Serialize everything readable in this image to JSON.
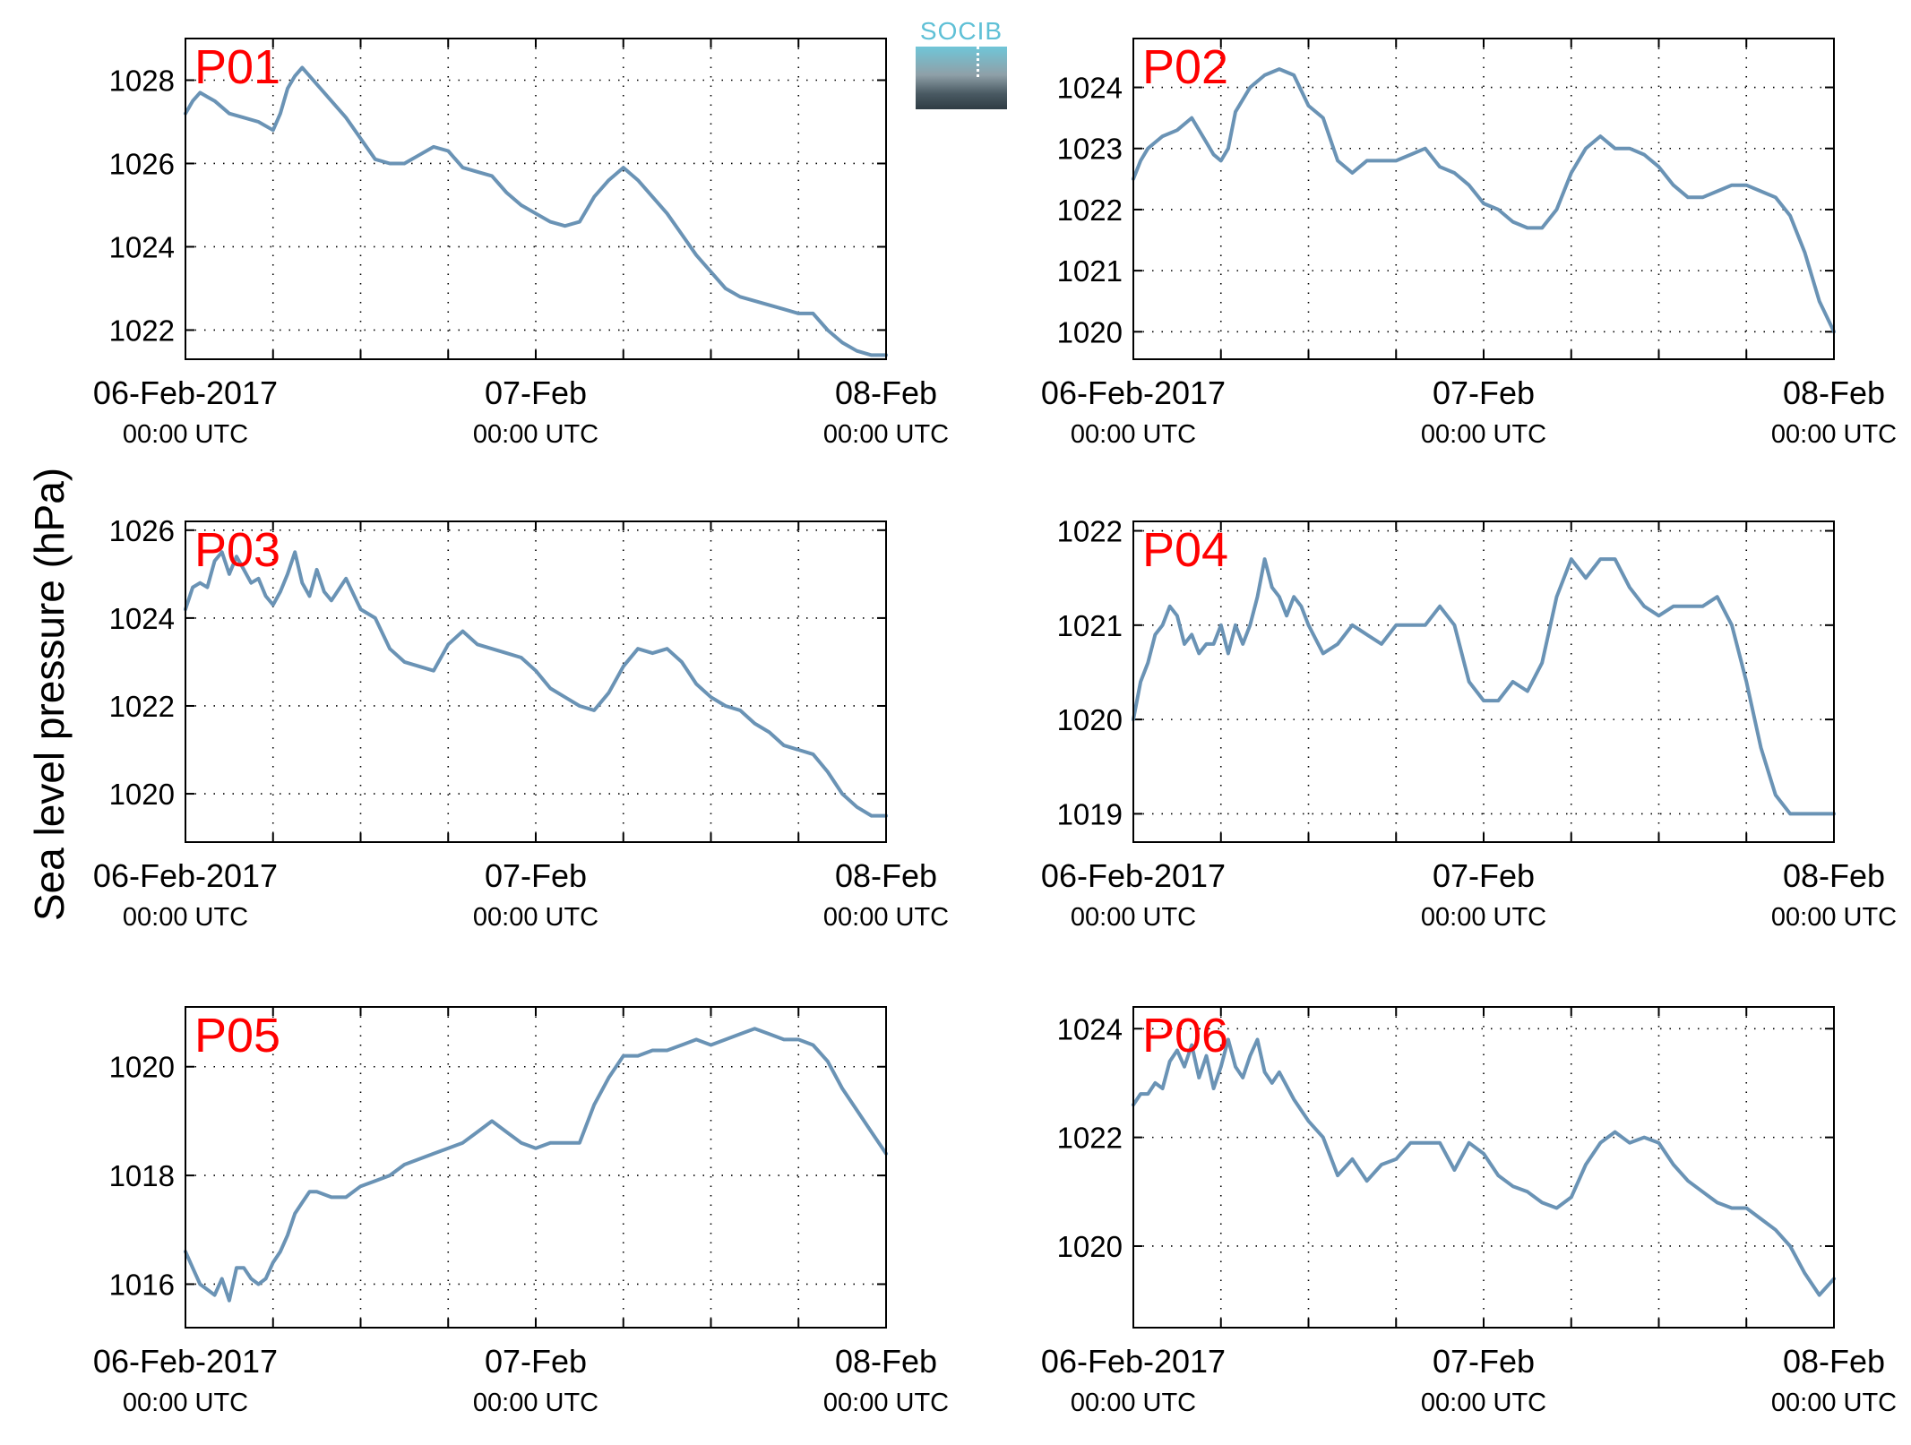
{
  "figure": {
    "ylabel": "Sea level pressure (hPa)",
    "logo_text": "SOCIB",
    "line_color": "#6a93b5",
    "label_color": "#ff0000"
  },
  "chart_data": [
    {
      "type": "line",
      "name": "P01",
      "xlim": [
        0,
        48
      ],
      "ylim": [
        1021.3,
        1029.0
      ],
      "yticks": [
        1022,
        1024,
        1026,
        1028
      ],
      "xticks": [
        "06-Feb-2017",
        "07-Feb",
        "08-Feb"
      ],
      "xtick_sub": [
        "00:00 UTC",
        "00:00 UTC",
        "00:00 UTC"
      ],
      "grid": true,
      "x": [
        0,
        0.5,
        1,
        1.5,
        2,
        3,
        4,
        5,
        6,
        6.5,
        7,
        7.5,
        8,
        8.5,
        9,
        10,
        11,
        12,
        13,
        14,
        15,
        16,
        17,
        18,
        19,
        20,
        21,
        22,
        23,
        24,
        25,
        26,
        27,
        28,
        29,
        30,
        31,
        32,
        33,
        34,
        35,
        36,
        37,
        38,
        39,
        40,
        41,
        42,
        43,
        44,
        45,
        46,
        47,
        48
      ],
      "y": [
        1027.2,
        1027.5,
        1027.7,
        1027.6,
        1027.5,
        1027.2,
        1027.1,
        1027.0,
        1026.8,
        1027.2,
        1027.8,
        1028.1,
        1028.3,
        1028.1,
        1027.9,
        1027.5,
        1027.1,
        1026.6,
        1026.1,
        1026.0,
        1026.0,
        1026.2,
        1026.4,
        1026.3,
        1025.9,
        1025.8,
        1025.7,
        1025.3,
        1025.0,
        1024.8,
        1024.6,
        1024.5,
        1024.6,
        1025.2,
        1025.6,
        1025.9,
        1025.6,
        1025.2,
        1024.8,
        1024.3,
        1023.8,
        1023.4,
        1023.0,
        1022.8,
        1022.7,
        1022.6,
        1022.5,
        1022.4,
        1022.4,
        1022.0,
        1021.7,
        1021.5,
        1021.4,
        1021.4
      ]
    },
    {
      "type": "line",
      "name": "P02",
      "xlim": [
        0,
        48
      ],
      "ylim": [
        1019.55,
        1024.8
      ],
      "yticks": [
        1020,
        1021,
        1022,
        1023,
        1024
      ],
      "xticks": [
        "06-Feb-2017",
        "07-Feb",
        "08-Feb"
      ],
      "xtick_sub": [
        "00:00 UTC",
        "00:00 UTC",
        "00:00 UTC"
      ],
      "grid": true,
      "x": [
        0,
        0.5,
        1,
        1.5,
        2,
        3,
        4,
        5,
        5.5,
        6,
        6.5,
        7,
        8,
        9,
        10,
        11,
        12,
        13,
        14,
        15,
        16,
        17,
        18,
        19,
        20,
        21,
        22,
        23,
        24,
        25,
        26,
        27,
        28,
        29,
        30,
        31,
        32,
        33,
        34,
        35,
        36,
        37,
        38,
        39,
        40,
        41,
        42,
        43,
        44,
        45,
        46,
        47,
        48
      ],
      "y": [
        1022.5,
        1022.8,
        1023.0,
        1023.1,
        1023.2,
        1023.3,
        1023.5,
        1023.1,
        1022.9,
        1022.8,
        1023.0,
        1023.6,
        1024.0,
        1024.2,
        1024.3,
        1024.2,
        1023.7,
        1023.5,
        1022.8,
        1022.6,
        1022.8,
        1022.8,
        1022.8,
        1022.9,
        1023.0,
        1022.7,
        1022.6,
        1022.4,
        1022.1,
        1022.0,
        1021.8,
        1021.7,
        1021.7,
        1022.0,
        1022.6,
        1023.0,
        1023.2,
        1023.0,
        1023.0,
        1022.9,
        1022.7,
        1022.4,
        1022.2,
        1022.2,
        1022.3,
        1022.4,
        1022.4,
        1022.3,
        1022.2,
        1021.9,
        1021.3,
        1020.5,
        1020.0
      ]
    },
    {
      "type": "line",
      "name": "P03",
      "xlim": [
        0,
        48
      ],
      "ylim": [
        1018.9,
        1026.2
      ],
      "yticks": [
        1020,
        1022,
        1024,
        1026
      ],
      "xticks": [
        "06-Feb-2017",
        "07-Feb",
        "08-Feb"
      ],
      "xtick_sub": [
        "00:00 UTC",
        "00:00 UTC",
        "00:00 UTC"
      ],
      "grid": true,
      "x": [
        0,
        0.5,
        1,
        1.5,
        2,
        2.5,
        3,
        3.5,
        4,
        4.5,
        5,
        5.5,
        6,
        6.5,
        7,
        7.5,
        8,
        8.5,
        9,
        9.5,
        10,
        11,
        12,
        13,
        14,
        15,
        16,
        17,
        18,
        19,
        20,
        21,
        22,
        23,
        24,
        25,
        26,
        27,
        28,
        29,
        30,
        31,
        32,
        33,
        34,
        35,
        36,
        37,
        38,
        39,
        40,
        41,
        42,
        43,
        44,
        45,
        46,
        47,
        48
      ],
      "y": [
        1024.2,
        1024.7,
        1024.8,
        1024.7,
        1025.3,
        1025.5,
        1025.0,
        1025.4,
        1025.1,
        1024.8,
        1024.9,
        1024.5,
        1024.3,
        1024.6,
        1025.0,
        1025.5,
        1024.8,
        1024.5,
        1025.1,
        1024.6,
        1024.4,
        1024.9,
        1024.2,
        1024.0,
        1023.3,
        1023.0,
        1022.9,
        1022.8,
        1023.4,
        1023.7,
        1023.4,
        1023.3,
        1023.2,
        1023.1,
        1022.8,
        1022.4,
        1022.2,
        1022.0,
        1021.9,
        1022.3,
        1022.9,
        1023.3,
        1023.2,
        1023.3,
        1023.0,
        1022.5,
        1022.2,
        1022.0,
        1021.9,
        1021.6,
        1021.4,
        1021.1,
        1021.0,
        1020.9,
        1020.5,
        1020.0,
        1019.7,
        1019.5,
        1019.5
      ]
    },
    {
      "type": "line",
      "name": "P04",
      "xlim": [
        0,
        48
      ],
      "ylim": [
        1018.7,
        1022.1
      ],
      "yticks": [
        1019,
        1020,
        1021,
        1022
      ],
      "xticks": [
        "06-Feb-2017",
        "07-Feb",
        "08-Feb"
      ],
      "xtick_sub": [
        "00:00 UTC",
        "00:00 UTC",
        "00:00 UTC"
      ],
      "grid": true,
      "x": [
        0,
        0.5,
        1,
        1.5,
        2,
        2.5,
        3,
        3.5,
        4,
        4.5,
        5,
        5.5,
        6,
        6.5,
        7,
        7.5,
        8,
        8.5,
        9,
        9.5,
        10,
        10.5,
        11,
        11.5,
        12,
        13,
        14,
        15,
        16,
        17,
        18,
        19,
        20,
        21,
        22,
        23,
        24,
        25,
        26,
        27,
        28,
        29,
        30,
        31,
        32,
        33,
        34,
        35,
        36,
        37,
        38,
        39,
        40,
        41,
        42,
        43,
        44,
        45,
        46,
        47,
        48
      ],
      "y": [
        1020.0,
        1020.4,
        1020.6,
        1020.9,
        1021.0,
        1021.2,
        1021.1,
        1020.8,
        1020.9,
        1020.7,
        1020.8,
        1020.8,
        1021.0,
        1020.7,
        1021.0,
        1020.8,
        1021.0,
        1021.3,
        1021.7,
        1021.4,
        1021.3,
        1021.1,
        1021.3,
        1021.2,
        1021.0,
        1020.7,
        1020.8,
        1021.0,
        1020.9,
        1020.8,
        1021.0,
        1021.0,
        1021.0,
        1021.2,
        1021.0,
        1020.4,
        1020.2,
        1020.2,
        1020.4,
        1020.3,
        1020.6,
        1021.3,
        1021.7,
        1021.5,
        1021.7,
        1021.7,
        1021.4,
        1021.2,
        1021.1,
        1021.2,
        1021.2,
        1021.2,
        1021.3,
        1021.0,
        1020.4,
        1019.7,
        1019.2,
        1019.0,
        1019.0,
        1019.0,
        1019.0
      ]
    },
    {
      "type": "line",
      "name": "P05",
      "xlim": [
        0,
        48
      ],
      "ylim": [
        1015.2,
        1021.1
      ],
      "yticks": [
        1016,
        1018,
        1020
      ],
      "xticks": [
        "06-Feb-2017",
        "07-Feb",
        "08-Feb"
      ],
      "xtick_sub": [
        "00:00 UTC",
        "00:00 UTC",
        "00:00 UTC"
      ],
      "grid": true,
      "x": [
        0,
        0.5,
        1,
        1.5,
        2,
        2.5,
        3,
        3.5,
        4,
        4.5,
        5,
        5.5,
        6,
        6.5,
        7,
        7.5,
        8,
        8.5,
        9,
        10,
        11,
        12,
        13,
        14,
        15,
        16,
        17,
        18,
        19,
        20,
        21,
        22,
        23,
        24,
        25,
        26,
        27,
        28,
        29,
        30,
        31,
        32,
        33,
        34,
        35,
        36,
        37,
        38,
        39,
        40,
        41,
        42,
        43,
        44,
        45,
        46,
        47,
        48
      ],
      "y": [
        1016.6,
        1016.3,
        1016.0,
        1015.9,
        1015.8,
        1016.1,
        1015.7,
        1016.3,
        1016.3,
        1016.1,
        1016.0,
        1016.1,
        1016.4,
        1016.6,
        1016.9,
        1017.3,
        1017.5,
        1017.7,
        1017.7,
        1017.6,
        1017.6,
        1017.8,
        1017.9,
        1018.0,
        1018.2,
        1018.3,
        1018.4,
        1018.5,
        1018.6,
        1018.8,
        1019.0,
        1018.8,
        1018.6,
        1018.5,
        1018.6,
        1018.6,
        1018.6,
        1019.3,
        1019.8,
        1020.2,
        1020.2,
        1020.3,
        1020.3,
        1020.4,
        1020.5,
        1020.4,
        1020.5,
        1020.6,
        1020.7,
        1020.6,
        1020.5,
        1020.5,
        1020.4,
        1020.1,
        1019.6,
        1019.2,
        1018.8,
        1018.4
      ]
    },
    {
      "type": "line",
      "name": "P06",
      "xlim": [
        0,
        48
      ],
      "ylim": [
        1018.5,
        1024.4
      ],
      "yticks": [
        1020,
        1022,
        1024
      ],
      "xticks": [
        "06-Feb-2017",
        "07-Feb",
        "08-Feb"
      ],
      "xtick_sub": [
        "00:00 UTC",
        "00:00 UTC",
        "00:00 UTC"
      ],
      "grid": true,
      "x": [
        0,
        0.5,
        1,
        1.5,
        2,
        2.5,
        3,
        3.5,
        4,
        4.5,
        5,
        5.5,
        6,
        6.5,
        7,
        7.5,
        8,
        8.5,
        9,
        9.5,
        10,
        11,
        12,
        13,
        14,
        15,
        16,
        17,
        18,
        19,
        20,
        21,
        22,
        23,
        24,
        25,
        26,
        27,
        28,
        29,
        30,
        31,
        32,
        33,
        34,
        35,
        36,
        37,
        38,
        39,
        40,
        41,
        42,
        43,
        44,
        45,
        46,
        47,
        48
      ],
      "y": [
        1022.6,
        1022.8,
        1022.8,
        1023.0,
        1022.9,
        1023.4,
        1023.6,
        1023.3,
        1023.7,
        1023.1,
        1023.5,
        1022.9,
        1023.3,
        1023.8,
        1023.3,
        1023.1,
        1023.5,
        1023.8,
        1023.2,
        1023.0,
        1023.2,
        1022.7,
        1022.3,
        1022.0,
        1021.3,
        1021.6,
        1021.2,
        1021.5,
        1021.6,
        1021.9,
        1021.9,
        1021.9,
        1021.4,
        1021.9,
        1021.7,
        1021.3,
        1021.1,
        1021.0,
        1020.8,
        1020.7,
        1020.9,
        1021.5,
        1021.9,
        1022.1,
        1021.9,
        1022.0,
        1021.9,
        1021.5,
        1021.2,
        1021.0,
        1020.8,
        1020.7,
        1020.7,
        1020.5,
        1020.3,
        1020.0,
        1019.5,
        1019.1,
        1019.4
      ]
    }
  ]
}
